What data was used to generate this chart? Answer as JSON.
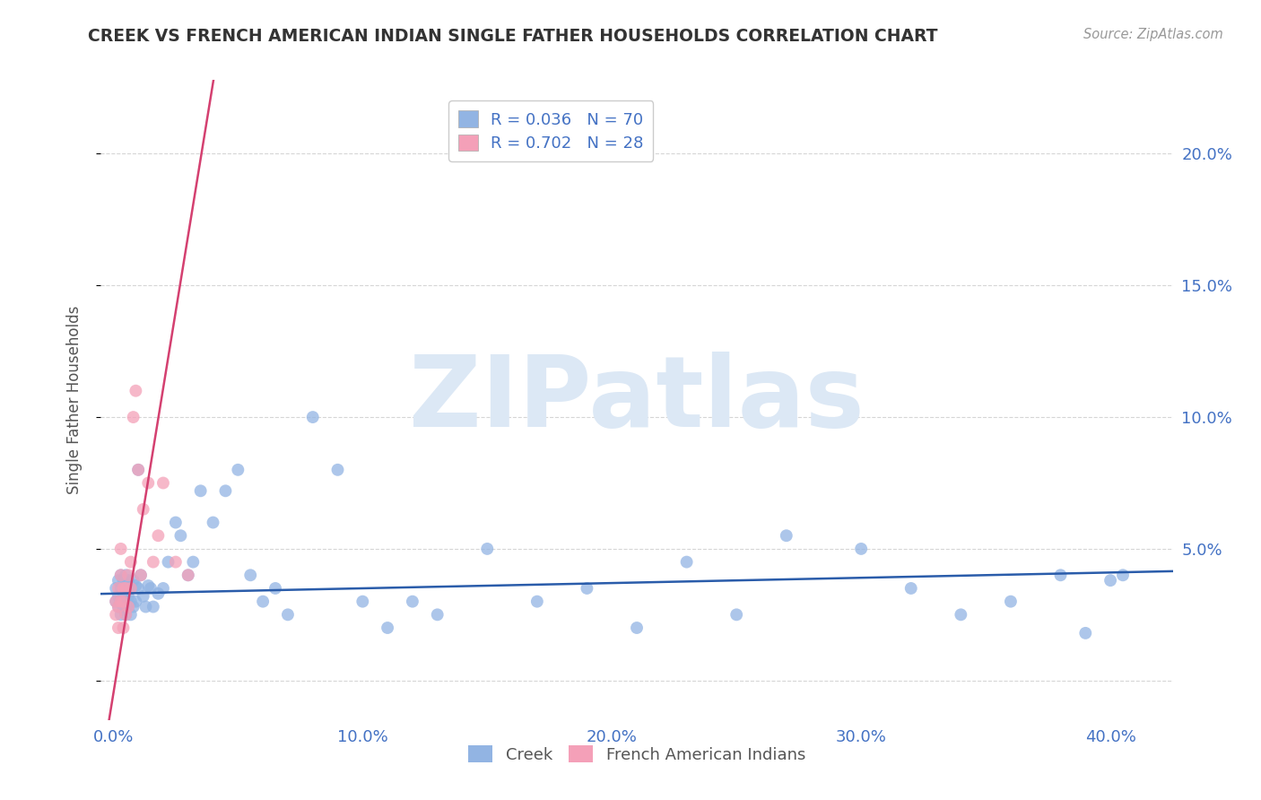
{
  "title": "CREEK VS FRENCH AMERICAN INDIAN SINGLE FATHER HOUSEHOLDS CORRELATION CHART",
  "source": "Source: ZipAtlas.com",
  "ylabel": "Single Father Households",
  "x_ticks": [
    0.0,
    0.1,
    0.2,
    0.3,
    0.4
  ],
  "x_tick_labels": [
    "0.0%",
    "10.0%",
    "20.0%",
    "30.0%",
    "40.0%"
  ],
  "y_ticks": [
    0.0,
    0.05,
    0.1,
    0.15,
    0.2
  ],
  "y_tick_labels": [
    "",
    "5.0%",
    "10.0%",
    "15.0%",
    "20.0%"
  ],
  "xlim": [
    -0.005,
    0.425
  ],
  "ylim": [
    -0.015,
    0.228
  ],
  "creek_color": "#92b4e3",
  "creek_color_line": "#2a5caa",
  "fai_color": "#f4a0b8",
  "fai_color_line": "#d44070",
  "tick_color": "#4472c4",
  "axis_label_color": "#555555",
  "title_color": "#333333",
  "source_color": "#999999",
  "grid_color": "#cccccc",
  "background_color": "#ffffff",
  "watermark": "ZIPatlas",
  "watermark_color": "#dce8f5",
  "legend_creek": "R = 0.036   N = 70",
  "legend_fai": "R = 0.702   N = 28",
  "creek_line_slope": 0.02,
  "creek_line_intercept": 0.033,
  "fai_line_slope": 5.8,
  "fai_line_intercept": -0.005,
  "creek_x": [
    0.001,
    0.001,
    0.002,
    0.002,
    0.002,
    0.003,
    0.003,
    0.003,
    0.003,
    0.004,
    0.004,
    0.004,
    0.005,
    0.005,
    0.005,
    0.005,
    0.006,
    0.006,
    0.006,
    0.007,
    0.007,
    0.007,
    0.008,
    0.008,
    0.009,
    0.009,
    0.01,
    0.01,
    0.011,
    0.012,
    0.013,
    0.014,
    0.015,
    0.016,
    0.018,
    0.02,
    0.022,
    0.025,
    0.027,
    0.03,
    0.032,
    0.035,
    0.04,
    0.045,
    0.05,
    0.055,
    0.06,
    0.065,
    0.07,
    0.08,
    0.09,
    0.1,
    0.11,
    0.12,
    0.13,
    0.15,
    0.17,
    0.19,
    0.21,
    0.23,
    0.25,
    0.27,
    0.3,
    0.32,
    0.34,
    0.36,
    0.38,
    0.39,
    0.4,
    0.405
  ],
  "creek_y": [
    0.03,
    0.035,
    0.028,
    0.032,
    0.038,
    0.025,
    0.03,
    0.035,
    0.04,
    0.028,
    0.033,
    0.038,
    0.025,
    0.03,
    0.035,
    0.04,
    0.028,
    0.032,
    0.038,
    0.025,
    0.03,
    0.035,
    0.028,
    0.038,
    0.03,
    0.036,
    0.035,
    0.08,
    0.04,
    0.032,
    0.028,
    0.036,
    0.035,
    0.028,
    0.033,
    0.035,
    0.045,
    0.06,
    0.055,
    0.04,
    0.045,
    0.072,
    0.06,
    0.072,
    0.08,
    0.04,
    0.03,
    0.035,
    0.025,
    0.1,
    0.08,
    0.03,
    0.02,
    0.03,
    0.025,
    0.05,
    0.03,
    0.035,
    0.02,
    0.045,
    0.025,
    0.055,
    0.05,
    0.035,
    0.025,
    0.03,
    0.04,
    0.018,
    0.038,
    0.04
  ],
  "fai_x": [
    0.001,
    0.001,
    0.002,
    0.002,
    0.002,
    0.003,
    0.003,
    0.003,
    0.004,
    0.004,
    0.004,
    0.005,
    0.005,
    0.006,
    0.006,
    0.007,
    0.007,
    0.008,
    0.009,
    0.01,
    0.011,
    0.012,
    0.014,
    0.016,
    0.018,
    0.02,
    0.025,
    0.03
  ],
  "fai_y": [
    0.025,
    0.03,
    0.028,
    0.035,
    0.02,
    0.03,
    0.04,
    0.05,
    0.03,
    0.035,
    0.02,
    0.035,
    0.025,
    0.04,
    0.028,
    0.045,
    0.035,
    0.1,
    0.11,
    0.08,
    0.04,
    0.065,
    0.075,
    0.045,
    0.055,
    0.075,
    0.045,
    0.04
  ]
}
